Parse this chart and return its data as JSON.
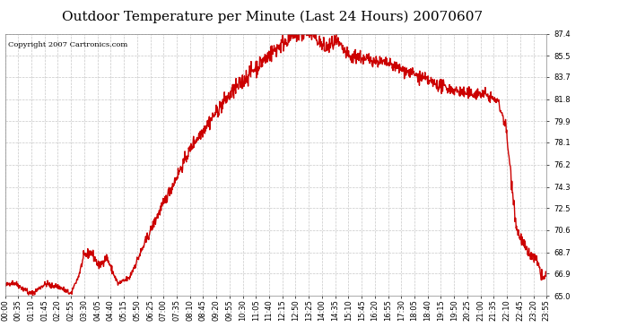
{
  "title": "Outdoor Temperature per Minute (Last 24 Hours) 20070607",
  "copyright_text": "Copyright 2007 Cartronics.com",
  "line_color": "#cc0000",
  "bg_color": "#ffffff",
  "grid_color": "#c8c8c8",
  "yticks": [
    65.0,
    66.9,
    68.7,
    70.6,
    72.5,
    74.3,
    76.2,
    78.1,
    79.9,
    81.8,
    83.7,
    85.5,
    87.4
  ],
  "ymin": 65.0,
  "ymax": 87.4,
  "xtick_labels": [
    "00:00",
    "00:35",
    "01:10",
    "01:45",
    "02:20",
    "02:55",
    "03:30",
    "04:05",
    "04:40",
    "05:15",
    "05:50",
    "06:25",
    "07:00",
    "07:35",
    "08:10",
    "08:45",
    "09:20",
    "09:55",
    "10:30",
    "11:05",
    "11:40",
    "12:15",
    "12:50",
    "13:25",
    "14:00",
    "14:35",
    "15:10",
    "15:45",
    "16:20",
    "16:55",
    "17:30",
    "18:05",
    "18:40",
    "19:15",
    "19:50",
    "20:25",
    "21:00",
    "21:35",
    "22:10",
    "22:45",
    "23:20",
    "23:55"
  ],
  "title_fontsize": 11,
  "copyright_fontsize": 6,
  "axis_fontsize": 6,
  "line_width": 1.0
}
